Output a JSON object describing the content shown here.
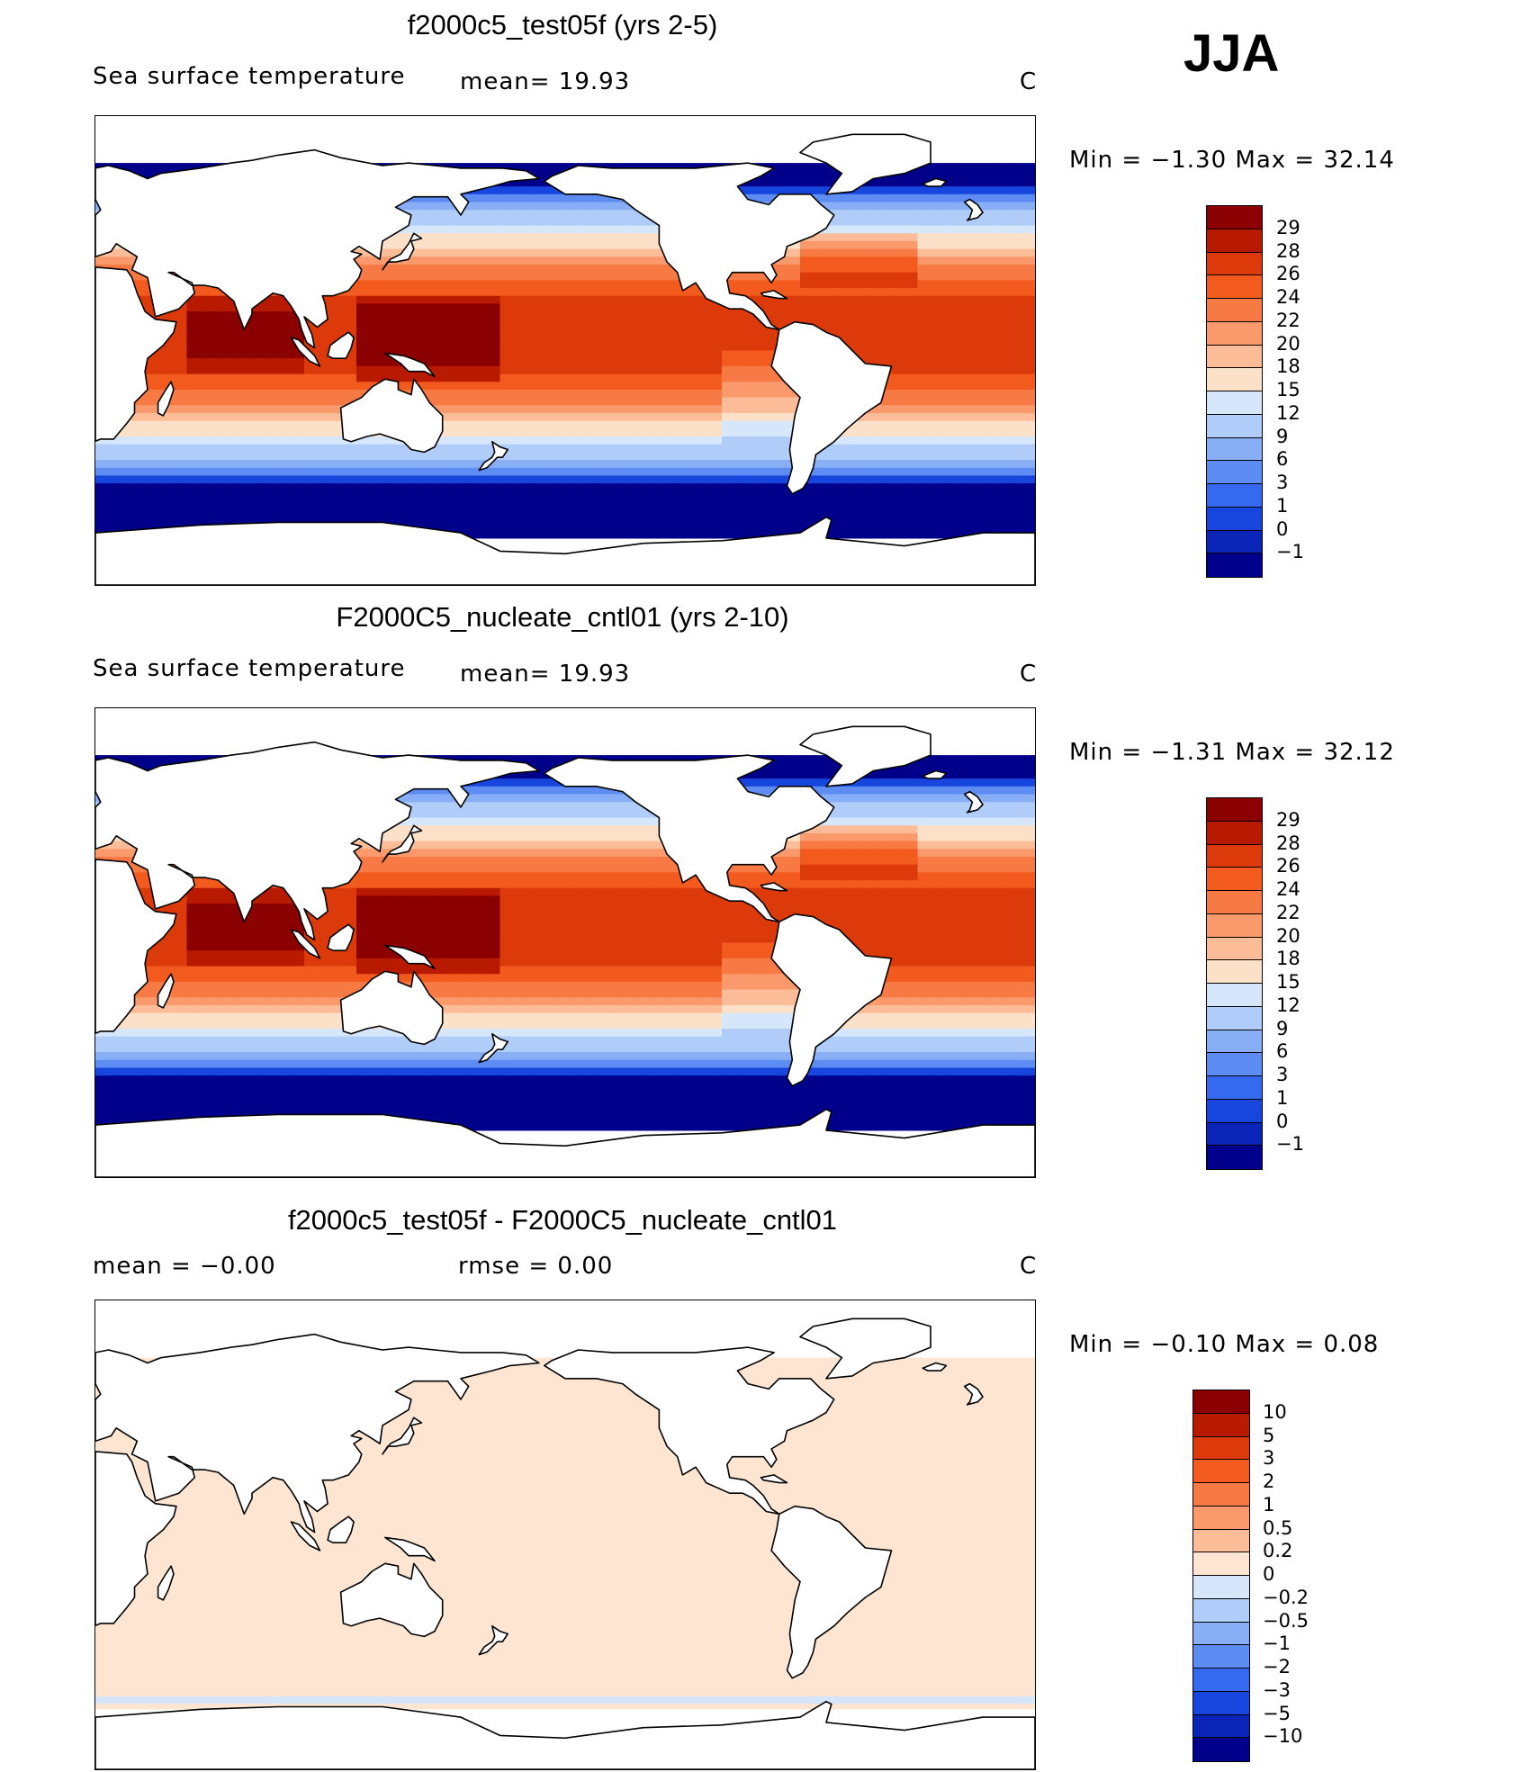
{
  "season": "JJA",
  "panels": [
    {
      "title": "f2000c5_test05f (yrs 2-5)",
      "left_label": "Sea surface temperature",
      "middle_label": "mean=   19.93",
      "right_label": "C",
      "minmax": "Min =   −1.30 Max =   32.14",
      "palette": "abs"
    },
    {
      "title": "F2000C5_nucleate_cntl01 (yrs 2-10)",
      "left_label": "Sea surface temperature",
      "middle_label": "mean=   19.93",
      "right_label": "C",
      "minmax": "Min =   −1.31 Max =   32.12",
      "palette": "abs"
    },
    {
      "title": "f2000c5_test05f - F2000C5_nucleate_cntl01",
      "left_label": "mean =   −0.00",
      "middle_label": "rmse =    0.00",
      "right_label": "C",
      "minmax": "Min =   −0.10 Max =    0.08",
      "palette": "diff"
    }
  ],
  "colorbar_abs": {
    "labels": [
      "29",
      "28",
      "26",
      "24",
      "22",
      "20",
      "18",
      "15",
      "12",
      "9",
      "6",
      "3",
      "1",
      "0",
      "−1"
    ],
    "colors": [
      "#8b0000",
      "#b81a00",
      "#dc3a0a",
      "#f25a1e",
      "#f77a44",
      "#fa9a6c",
      "#fcbc98",
      "#fde0c8",
      "#d6e6fb",
      "#b0ccf8",
      "#88aef6",
      "#5d8df3",
      "#356af0",
      "#1746de",
      "#0a24b8",
      "#00008b"
    ]
  },
  "colorbar_diff": {
    "labels": [
      "10",
      "5",
      "3",
      "2",
      "1",
      "0.5",
      "0.2",
      "0",
      "−0.2",
      "−0.5",
      "−1",
      "−2",
      "−3",
      "−5",
      "−10"
    ],
    "colors": [
      "#8b0000",
      "#b81a00",
      "#dc3a0a",
      "#f25a1e",
      "#f77a44",
      "#fa9a6c",
      "#fcbc98",
      "#fde5d2",
      "#d6e6fb",
      "#b0ccf8",
      "#88aef6",
      "#5d8df3",
      "#356af0",
      "#1746de",
      "#0a24b8",
      "#00008b"
    ]
  }
}
